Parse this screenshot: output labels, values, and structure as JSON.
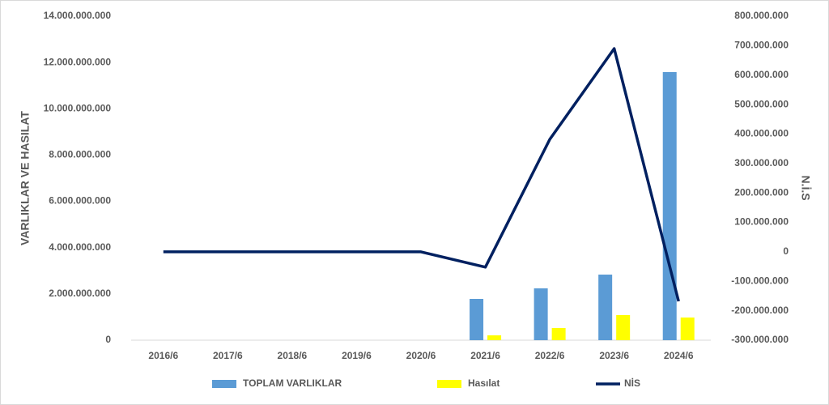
{
  "chart_data": {
    "type": "bar-line",
    "categories": [
      "2016/6",
      "2017/6",
      "2018/6",
      "2019/6",
      "2020/6",
      "2021/6",
      "2022/6",
      "2023/6",
      "2024/6"
    ],
    "series": [
      {
        "name": "TOPLAM VARLIKLAR",
        "type": "bar",
        "color": "#5b9bd5",
        "values": [
          0,
          0,
          0,
          0,
          0,
          1785000000,
          2240000000,
          2835000000,
          11585000000
        ]
      },
      {
        "name": "Hasılat",
        "type": "bar",
        "color": "#ffff00",
        "values": [
          0,
          0,
          0,
          0,
          0,
          210000000,
          525000000,
          1085000000,
          980000000
        ]
      },
      {
        "name": "NİS",
        "type": "line",
        "axis": "y2",
        "color": "#002060",
        "values": [
          0,
          0,
          0,
          0,
          0,
          -52000000,
          382000000,
          690000000,
          -168000000
        ]
      }
    ],
    "y_label": "VARLIKLAR VE HASILAT",
    "y2_label": "N.İ.S",
    "ylim": [
      0,
      14000000000
    ],
    "yticks": [
      0,
      {
        "value": 2000000000,
        "label": "2.000.000.000"
      },
      {
        "value": 4000000000,
        "label": "4.000.000.000"
      },
      {
        "value": 6000000000,
        "label": "6.000.000.000"
      },
      {
        "value": 8000000000,
        "label": "8.000.000.000"
      },
      {
        "value": 10000000000,
        "label": "10.000.000.000"
      },
      {
        "value": 12000000000,
        "label": "12.000.000.000"
      },
      {
        "value": 14000000000,
        "label": "14.000.000.000"
      }
    ],
    "y2lim": [
      -300000000,
      800000000
    ],
    "y2ticks": [
      {
        "value": -300000000,
        "label": "-300.000.000"
      },
      {
        "value": -200000000,
        "label": "-200.000.000"
      },
      {
        "value": -100000000,
        "label": "-100.000.000"
      },
      0,
      {
        "value": 100000000,
        "label": "100.000.000"
      },
      {
        "value": 200000000,
        "label": "200.000.000"
      },
      {
        "value": 300000000,
        "label": "300.000.000"
      },
      {
        "value": 400000000,
        "label": "400.000.000"
      },
      {
        "value": 500000000,
        "label": "500.000.000"
      },
      {
        "value": 600000000,
        "label": "600.000.000"
      },
      {
        "value": 700000000,
        "label": "700.000.000"
      },
      {
        "value": 800000000,
        "label": "800.000.000"
      }
    ],
    "grid": false,
    "legend": "bottom"
  }
}
